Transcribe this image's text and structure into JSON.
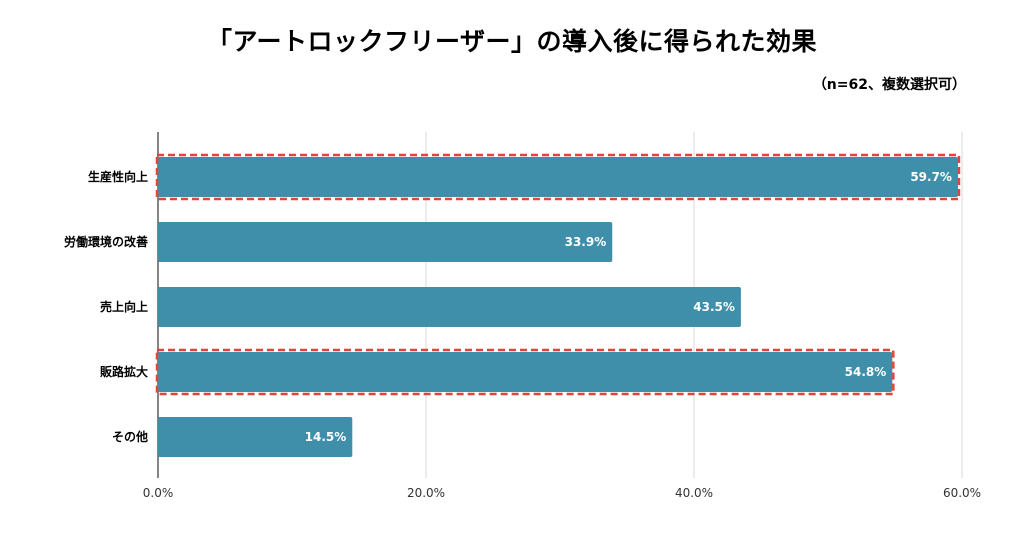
{
  "title": "「アートロックフリーザー」の導入後に得られた効果",
  "subtitle": "（n=62、複数選択可）",
  "colors": {
    "bar": "#3f8fab",
    "highlight": "#e0443a",
    "grid": "#d9d9d9",
    "axis": "#333333"
  },
  "chart_data": {
    "type": "bar",
    "orientation": "horizontal",
    "title": "「アートロックフリーザー」の導入後に得られた効果",
    "subtitle": "（n=62、複数選択可）",
    "categories": [
      "生産性向上",
      "労働環境の改善",
      "売上向上",
      "販路拡大",
      "その他"
    ],
    "values": [
      59.7,
      33.9,
      43.5,
      54.8,
      14.5
    ],
    "value_labels": [
      "59.7%",
      "33.9%",
      "43.5%",
      "54.8%",
      "14.5%"
    ],
    "highlighted": [
      true,
      false,
      false,
      true,
      false
    ],
    "xlim": [
      0,
      60
    ],
    "xticks": [
      0,
      20,
      40,
      60
    ],
    "xtick_labels": [
      "0.0%",
      "20.0%",
      "40.0%",
      "60.0%"
    ],
    "grid": true,
    "xlabel": "",
    "ylabel": ""
  }
}
